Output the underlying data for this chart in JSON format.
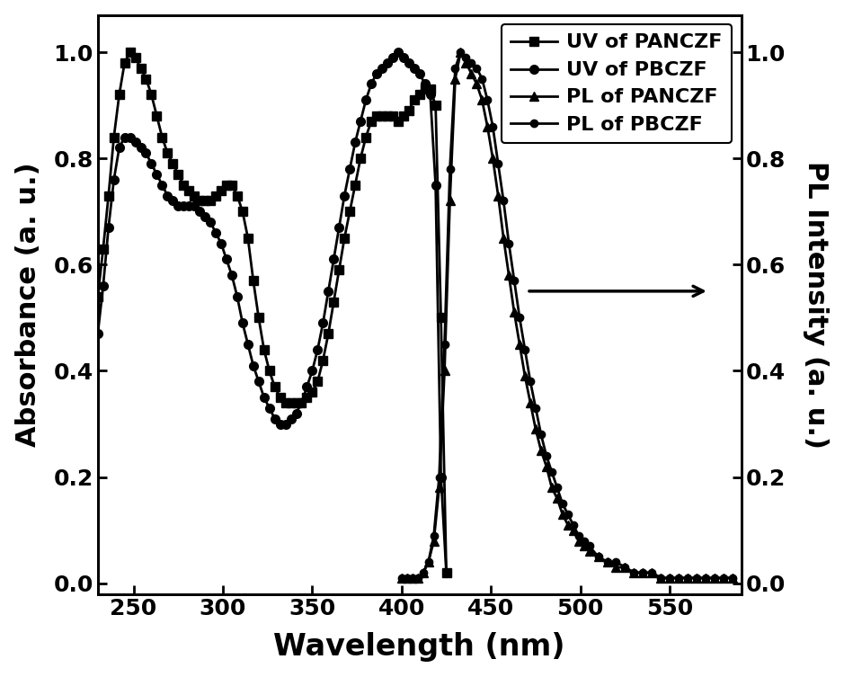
{
  "title": "",
  "xlabel": "Wavelength (nm)",
  "ylabel_left": "Absorbance (a. u.)",
  "ylabel_right": "PL Intensity (a. u.)",
  "xlim": [
    230,
    590
  ],
  "ylim": [
    -0.02,
    1.07
  ],
  "xticks": [
    250,
    300,
    350,
    400,
    450,
    500,
    550
  ],
  "yticks": [
    0.0,
    0.2,
    0.4,
    0.6,
    0.8,
    1.0
  ],
  "background_color": "#ffffff",
  "uv_panczf_x": [
    230,
    233,
    236,
    239,
    242,
    245,
    248,
    251,
    254,
    257,
    260,
    263,
    266,
    269,
    272,
    275,
    278,
    281,
    284,
    287,
    290,
    293,
    296,
    299,
    302,
    305,
    308,
    311,
    314,
    317,
    320,
    323,
    326,
    329,
    332,
    335,
    338,
    341,
    344,
    347,
    350,
    353,
    356,
    359,
    362,
    365,
    368,
    371,
    374,
    377,
    380,
    383,
    386,
    389,
    392,
    395,
    398,
    401,
    404,
    407,
    410,
    413,
    416,
    419,
    422,
    425
  ],
  "uv_panczf_y": [
    0.54,
    0.63,
    0.73,
    0.84,
    0.92,
    0.98,
    1.0,
    0.99,
    0.97,
    0.95,
    0.92,
    0.88,
    0.84,
    0.81,
    0.79,
    0.77,
    0.75,
    0.74,
    0.73,
    0.72,
    0.72,
    0.72,
    0.73,
    0.74,
    0.75,
    0.75,
    0.73,
    0.7,
    0.65,
    0.57,
    0.5,
    0.44,
    0.4,
    0.37,
    0.35,
    0.34,
    0.34,
    0.34,
    0.34,
    0.35,
    0.36,
    0.38,
    0.42,
    0.47,
    0.53,
    0.59,
    0.65,
    0.7,
    0.75,
    0.8,
    0.84,
    0.87,
    0.88,
    0.88,
    0.88,
    0.88,
    0.87,
    0.88,
    0.89,
    0.91,
    0.92,
    0.93,
    0.93,
    0.9,
    0.5,
    0.02
  ],
  "uv_pbczf_x": [
    230,
    233,
    236,
    239,
    242,
    245,
    248,
    251,
    254,
    257,
    260,
    263,
    266,
    269,
    272,
    275,
    278,
    281,
    284,
    287,
    290,
    293,
    296,
    299,
    302,
    305,
    308,
    311,
    314,
    317,
    320,
    323,
    326,
    329,
    332,
    335,
    338,
    341,
    344,
    347,
    350,
    353,
    356,
    359,
    362,
    365,
    368,
    371,
    374,
    377,
    380,
    383,
    386,
    389,
    392,
    395,
    398,
    401,
    404,
    407,
    410,
    413,
    416,
    419,
    422,
    425
  ],
  "uv_pbczf_y": [
    0.47,
    0.56,
    0.67,
    0.76,
    0.82,
    0.84,
    0.84,
    0.83,
    0.82,
    0.81,
    0.79,
    0.77,
    0.75,
    0.73,
    0.72,
    0.71,
    0.71,
    0.71,
    0.71,
    0.7,
    0.69,
    0.68,
    0.66,
    0.64,
    0.61,
    0.58,
    0.54,
    0.49,
    0.45,
    0.41,
    0.38,
    0.35,
    0.33,
    0.31,
    0.3,
    0.3,
    0.31,
    0.32,
    0.34,
    0.37,
    0.4,
    0.44,
    0.49,
    0.55,
    0.61,
    0.67,
    0.73,
    0.78,
    0.83,
    0.87,
    0.91,
    0.94,
    0.96,
    0.97,
    0.98,
    0.99,
    1.0,
    0.99,
    0.98,
    0.97,
    0.96,
    0.94,
    0.92,
    0.75,
    0.2,
    0.02
  ],
  "pl_panczf_x": [
    400,
    403,
    406,
    409,
    412,
    415,
    418,
    421,
    424,
    427,
    430,
    433,
    436,
    439,
    442,
    445,
    448,
    451,
    454,
    457,
    460,
    463,
    466,
    469,
    472,
    475,
    478,
    481,
    484,
    487,
    490,
    493,
    496,
    499,
    502,
    505,
    510,
    515,
    520,
    525,
    530,
    535,
    540,
    545,
    550,
    555,
    560,
    565,
    570,
    575,
    580,
    585
  ],
  "pl_panczf_y": [
    0.01,
    0.01,
    0.01,
    0.01,
    0.02,
    0.04,
    0.08,
    0.18,
    0.4,
    0.72,
    0.95,
    1.0,
    0.98,
    0.96,
    0.94,
    0.91,
    0.86,
    0.8,
    0.73,
    0.65,
    0.58,
    0.51,
    0.45,
    0.39,
    0.34,
    0.29,
    0.25,
    0.22,
    0.18,
    0.16,
    0.13,
    0.11,
    0.1,
    0.08,
    0.07,
    0.06,
    0.05,
    0.04,
    0.03,
    0.03,
    0.02,
    0.02,
    0.02,
    0.01,
    0.01,
    0.01,
    0.01,
    0.01,
    0.01,
    0.01,
    0.01,
    0.01
  ],
  "pl_pbczf_x": [
    400,
    403,
    406,
    409,
    412,
    415,
    418,
    421,
    424,
    427,
    430,
    433,
    436,
    439,
    442,
    445,
    448,
    451,
    454,
    457,
    460,
    463,
    466,
    469,
    472,
    475,
    478,
    481,
    484,
    487,
    490,
    493,
    496,
    499,
    502,
    505,
    510,
    515,
    520,
    525,
    530,
    535,
    540,
    545,
    550,
    555,
    560,
    565,
    570,
    575,
    580,
    585
  ],
  "pl_pbczf_y": [
    0.01,
    0.01,
    0.01,
    0.01,
    0.02,
    0.04,
    0.09,
    0.2,
    0.45,
    0.78,
    0.97,
    1.0,
    0.99,
    0.98,
    0.97,
    0.95,
    0.91,
    0.86,
    0.79,
    0.72,
    0.64,
    0.57,
    0.5,
    0.44,
    0.38,
    0.33,
    0.28,
    0.24,
    0.21,
    0.18,
    0.15,
    0.13,
    0.11,
    0.09,
    0.08,
    0.07,
    0.05,
    0.04,
    0.04,
    0.03,
    0.02,
    0.02,
    0.02,
    0.01,
    0.01,
    0.01,
    0.01,
    0.01,
    0.01,
    0.01,
    0.01,
    0.01
  ],
  "legend_labels": [
    "UV of PANCZF",
    "UV of PBCZF",
    "PL of PANCZF",
    "PL of PBCZF"
  ],
  "line_color": "#000000",
  "marker_size": 7,
  "linewidth": 2.0
}
